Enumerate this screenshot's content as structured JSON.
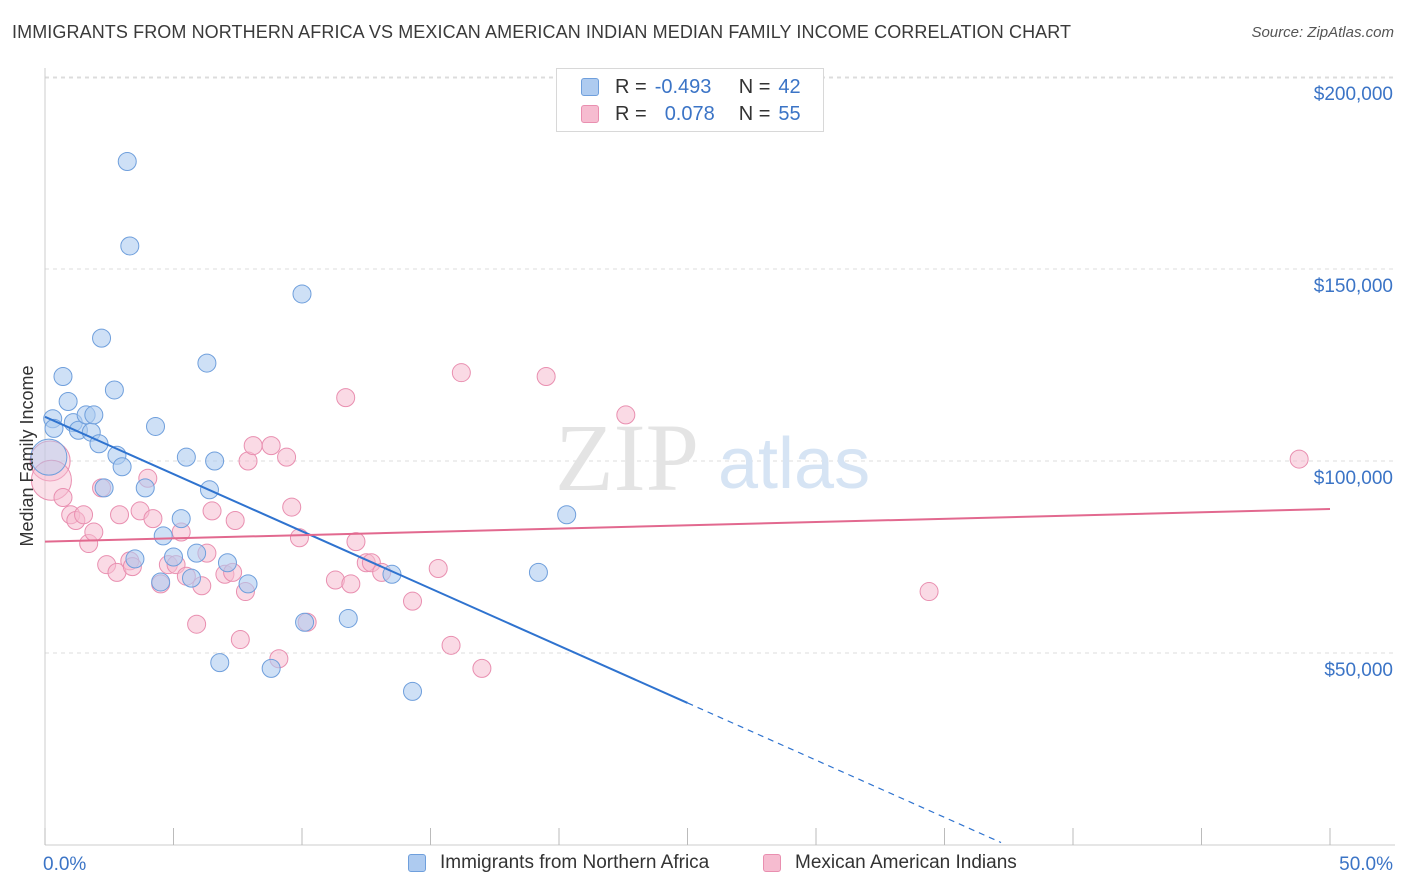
{
  "title": "IMMIGRANTS FROM NORTHERN AFRICA VS MEXICAN AMERICAN INDIAN MEDIAN FAMILY INCOME CORRELATION CHART",
  "source": "Source: ZipAtlas.com",
  "watermark": {
    "zip": "ZIP",
    "atlas": "atlas"
  },
  "legend": {
    "r_label": "R =",
    "n_label": "N =",
    "series1": {
      "r": "-0.493",
      "n": "42"
    },
    "series2": {
      "r": "0.078",
      "n": "55"
    }
  },
  "colors": {
    "blue_fill": "#aecbf0",
    "blue_stroke": "#6f9fdc",
    "blue_line": "#2f73cf",
    "pink_fill": "#f6bcd0",
    "pink_stroke": "#e98fb0",
    "pink_line": "#e2698f",
    "axis_text": "#3b74c6",
    "grid": "#dcdcdc"
  },
  "chart_data": {
    "type": "scatter",
    "title": "IMMIGRANTS FROM NORTHERN AFRICA VS MEXICAN AMERICAN INDIAN MEDIAN FAMILY INCOME CORRELATION CHART",
    "xlabel": "",
    "ylabel": "Median Family Income",
    "xlim": [
      0,
      50
    ],
    "ylim": [
      0,
      210000
    ],
    "x_tick_labels": [
      "0.0%",
      "50.0%"
    ],
    "y_ticks": [
      50000,
      100000,
      150000,
      200000
    ],
    "y_tick_labels": [
      "$50,000",
      "$100,000",
      "$150,000",
      "$200,000"
    ],
    "grid": true,
    "legend_position": "bottom",
    "series": [
      {
        "name": "Immigrants from Northern Africa",
        "color": "#6f9fdc",
        "points": [
          [
            0.3,
            111000
          ],
          [
            0.35,
            108500
          ],
          [
            0.7,
            122000
          ],
          [
            0.9,
            115500
          ],
          [
            1.1,
            110000
          ],
          [
            1.3,
            108000
          ],
          [
            1.6,
            112000
          ],
          [
            1.8,
            107500
          ],
          [
            1.9,
            112000
          ],
          [
            2.1,
            104500
          ],
          [
            2.3,
            93000
          ],
          [
            2.2,
            132000
          ],
          [
            2.7,
            118500
          ],
          [
            2.8,
            101500
          ],
          [
            3.0,
            98500
          ],
          [
            3.2,
            178000
          ],
          [
            3.3,
            156000
          ],
          [
            3.5,
            74500
          ],
          [
            3.9,
            93000
          ],
          [
            4.3,
            109000
          ],
          [
            4.5,
            68500
          ],
          [
            4.6,
            80500
          ],
          [
            5.0,
            75000
          ],
          [
            5.3,
            85000
          ],
          [
            5.5,
            101000
          ],
          [
            5.7,
            69500
          ],
          [
            5.9,
            76000
          ],
          [
            6.3,
            125500
          ],
          [
            6.4,
            92500
          ],
          [
            6.6,
            100000
          ],
          [
            6.8,
            47500
          ],
          [
            7.1,
            73500
          ],
          [
            7.9,
            68000
          ],
          [
            8.8,
            46000
          ],
          [
            10.0,
            143500
          ],
          [
            10.1,
            58000
          ],
          [
            11.8,
            59000
          ],
          [
            13.5,
            70500
          ],
          [
            14.3,
            40000
          ],
          [
            19.2,
            71000
          ],
          [
            20.3,
            86000
          ],
          [
            0.15,
            101000
          ]
        ]
      },
      {
        "name": "Mexican American Indians",
        "color": "#e98fb0",
        "points": [
          [
            0.2,
            100000
          ],
          [
            0.25,
            95000
          ],
          [
            0.7,
            90500
          ],
          [
            1.0,
            86000
          ],
          [
            1.2,
            84500
          ],
          [
            1.5,
            86000
          ],
          [
            1.7,
            78500
          ],
          [
            1.9,
            81500
          ],
          [
            2.2,
            93000
          ],
          [
            2.4,
            73000
          ],
          [
            2.8,
            71000
          ],
          [
            2.9,
            86000
          ],
          [
            3.3,
            74000
          ],
          [
            3.4,
            72500
          ],
          [
            3.7,
            87000
          ],
          [
            4.0,
            95500
          ],
          [
            4.2,
            85000
          ],
          [
            4.5,
            68000
          ],
          [
            4.8,
            73000
          ],
          [
            5.1,
            73000
          ],
          [
            5.3,
            81500
          ],
          [
            5.5,
            70000
          ],
          [
            5.9,
            57500
          ],
          [
            6.1,
            67500
          ],
          [
            6.3,
            76000
          ],
          [
            6.5,
            87000
          ],
          [
            7.0,
            70500
          ],
          [
            7.3,
            71000
          ],
          [
            7.4,
            84500
          ],
          [
            7.6,
            53500
          ],
          [
            7.8,
            66000
          ],
          [
            7.9,
            100000
          ],
          [
            8.1,
            104000
          ],
          [
            8.8,
            104000
          ],
          [
            9.1,
            48500
          ],
          [
            9.4,
            101000
          ],
          [
            9.6,
            88000
          ],
          [
            9.9,
            80000
          ],
          [
            10.2,
            58000
          ],
          [
            11.3,
            69000
          ],
          [
            11.7,
            116500
          ],
          [
            11.9,
            68000
          ],
          [
            12.1,
            79000
          ],
          [
            12.5,
            73500
          ],
          [
            12.7,
            73500
          ],
          [
            13.1,
            71000
          ],
          [
            14.3,
            63500
          ],
          [
            15.3,
            72000
          ],
          [
            15.8,
            52000
          ],
          [
            16.2,
            123000
          ],
          [
            17.0,
            46000
          ],
          [
            19.5,
            122000
          ],
          [
            22.6,
            112000
          ],
          [
            34.4,
            66000
          ],
          [
            48.8,
            100500
          ]
        ]
      }
    ],
    "trend_lines": [
      {
        "series": "Immigrants from Northern Africa",
        "x": [
          0,
          25
        ],
        "y": [
          111500,
          37000
        ],
        "dashed_extension_x": [
          25,
          37.2
        ]
      },
      {
        "series": "Mexican American Indians",
        "x": [
          0,
          50
        ],
        "y": [
          79000,
          87500
        ]
      }
    ]
  },
  "bottom_legend": {
    "series1": "Immigrants from Northern Africa",
    "series2": "Mexican American Indians"
  }
}
